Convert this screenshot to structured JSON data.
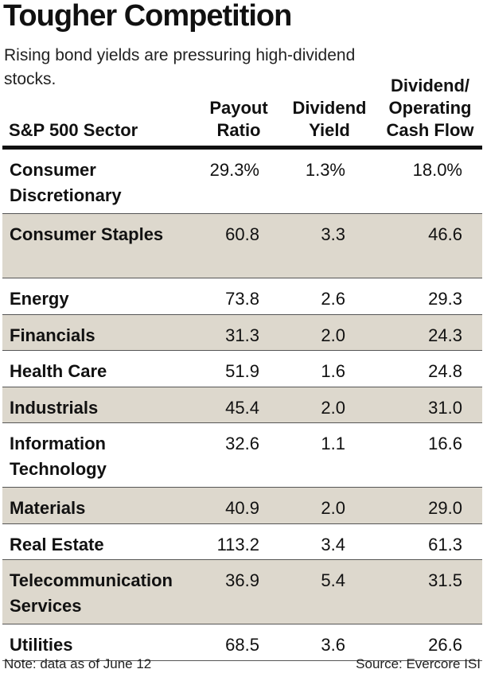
{
  "title": "Tougher Competition",
  "subtitle": "Rising bond yields are pressuring high-dividend stocks.",
  "columns": {
    "sector": "S&P 500 Sector",
    "payout": [
      "Payout",
      "Ratio"
    ],
    "yield": [
      "Dividend",
      "Yield"
    ],
    "cashflow": [
      "Dividend/",
      "Operating",
      "Cash Flow"
    ]
  },
  "rows": [
    {
      "sector": "Consumer Discretionary",
      "payout": "29.3%",
      "yield": "1.3%",
      "cashflow": "18.0%"
    },
    {
      "sector": "Consumer Staples",
      "payout": "60.8",
      "yield": "3.3",
      "cashflow": "46.6"
    },
    {
      "sector": "Energy",
      "payout": "73.8",
      "yield": "2.6",
      "cashflow": "29.3"
    },
    {
      "sector": "Financials",
      "payout": "31.3",
      "yield": "2.0",
      "cashflow": "24.3"
    },
    {
      "sector": "Health Care",
      "payout": "51.9",
      "yield": "1.6",
      "cashflow": "24.8"
    },
    {
      "sector": "Industrials",
      "payout": "45.4",
      "yield": "2.0",
      "cashflow": "31.0"
    },
    {
      "sector": "Information Technology",
      "payout": "32.6",
      "yield": "1.1",
      "cashflow": "16.6"
    },
    {
      "sector": "Materials",
      "payout": "40.9",
      "yield": "2.0",
      "cashflow": "29.0"
    },
    {
      "sector": "Real Estate",
      "payout": "113.2",
      "yield": "3.4",
      "cashflow": "61.3"
    },
    {
      "sector": "Telecommunication Services",
      "payout": "36.9",
      "yield": "5.4",
      "cashflow": "31.5"
    },
    {
      "sector": "Utilities",
      "payout": "68.5",
      "yield": "3.6",
      "cashflow": "26.6"
    }
  ],
  "footer": {
    "note": "Note: data as of June 12",
    "source": "Source: Evercore ISI"
  },
  "colors": {
    "shade": "#ddd8cd",
    "rule": "#111111"
  }
}
